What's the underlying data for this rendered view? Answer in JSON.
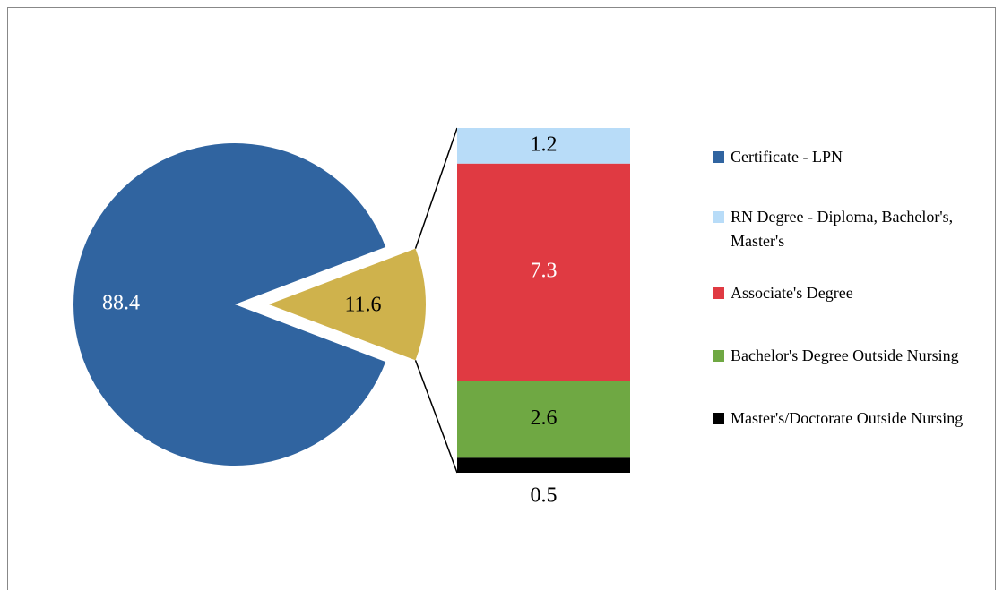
{
  "chart_data": {
    "type": "bar-of-pie",
    "pie": {
      "names": [
        "Certificate - LPN",
        null
      ],
      "values": [
        88.4,
        11.6
      ],
      "colors": [
        "#3064a0",
        "#cfb24c"
      ],
      "label_colors": [
        "#ffffff",
        "#000000"
      ]
    },
    "bar": {
      "series": [
        {
          "name": "RN Degree - Diploma, Bachelor's, Master's",
          "color": "#b8dcf8",
          "value": 1.2,
          "label_color": "#000000"
        },
        {
          "name": "Associate's Degree",
          "color": "#e03a42",
          "value": 7.3,
          "label_color": "#ffffff"
        },
        {
          "name": "Bachelor's Degree Outside Nursing",
          "color": "#6fa843",
          "value": 2.6,
          "label_color": "#000000"
        },
        {
          "name": "Master's/Doctorate Outside Nursing",
          "color": "#000000",
          "value": 0.5,
          "label_color": "#000000"
        }
      ]
    }
  }
}
